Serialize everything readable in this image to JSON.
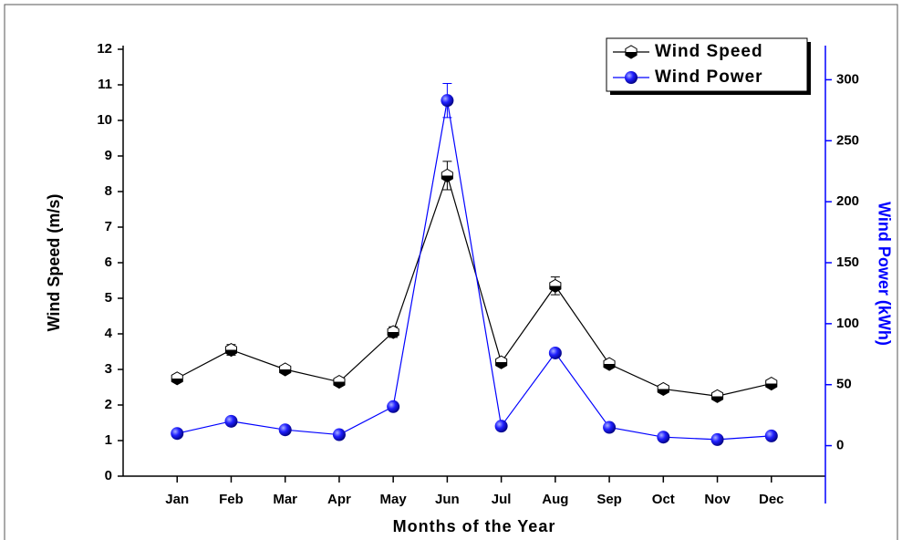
{
  "chart_data": {
    "type": "line",
    "categories": [
      "Jan",
      "Feb",
      "Mar",
      "Apr",
      "May",
      "Jun",
      "Jul",
      "Aug",
      "Sep",
      "Oct",
      "Nov",
      "Dec"
    ],
    "x_label": "Months of the Year",
    "y_label": "Wind Speed (m/s)",
    "y2_label": "Wind Power (kWh)",
    "ylim": [
      0,
      12
    ],
    "yticks": [
      0,
      1,
      2,
      3,
      4,
      5,
      6,
      7,
      8,
      9,
      10,
      11,
      12
    ],
    "y2lim": [
      -25,
      325
    ],
    "y2ticks": [
      0,
      50,
      100,
      150,
      200,
      250,
      300
    ],
    "legend": "upper right",
    "series": [
      {
        "name": "Wind Speed",
        "color": "#000000",
        "values": [
          2.75,
          3.55,
          3.0,
          2.65,
          4.05,
          8.45,
          3.2,
          5.35,
          3.15,
          2.45,
          2.25,
          2.6
        ],
        "errors": [
          0.08,
          0.15,
          0.1,
          0.08,
          0.15,
          0.4,
          0.1,
          0.25,
          0.1,
          0.08,
          0.08,
          0.08
        ]
      },
      {
        "name": "Wind Power",
        "color": "#0000ff",
        "axis": "y2",
        "values": [
          10,
          20,
          13,
          9,
          32,
          283,
          16,
          76,
          15,
          7,
          5,
          8
        ],
        "errors": [
          1,
          1,
          1,
          1,
          1,
          14,
          1,
          1,
          1,
          1,
          1,
          1
        ]
      }
    ]
  }
}
